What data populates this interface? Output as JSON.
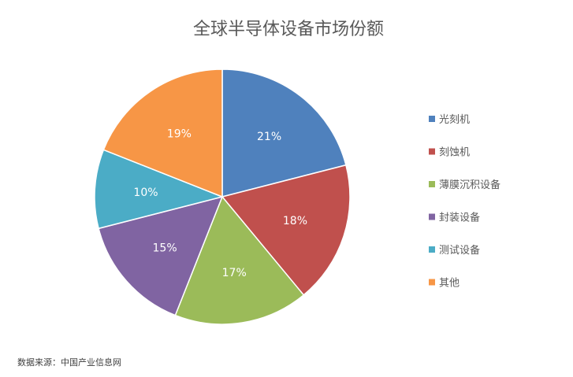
{
  "chart_data": {
    "type": "pie",
    "title": "全球半导体设备市场份额",
    "categories": [
      "光刻机",
      "刻蚀机",
      "薄膜沉积设备",
      "封装设备",
      "测试设备",
      "其他"
    ],
    "values": [
      21,
      18,
      17,
      15,
      10,
      19
    ],
    "labels": [
      "21%",
      "18%",
      "17%",
      "15%",
      "10%",
      "19%"
    ],
    "colors": [
      "#4F81BD",
      "#C0504D",
      "#9BBB59",
      "#8064A2",
      "#4BACC6",
      "#F79646"
    ],
    "legend_position": "right",
    "start_angle": "12 o'clock",
    "direction": "clockwise"
  },
  "source_note": "数据来源：中国产业信息网"
}
